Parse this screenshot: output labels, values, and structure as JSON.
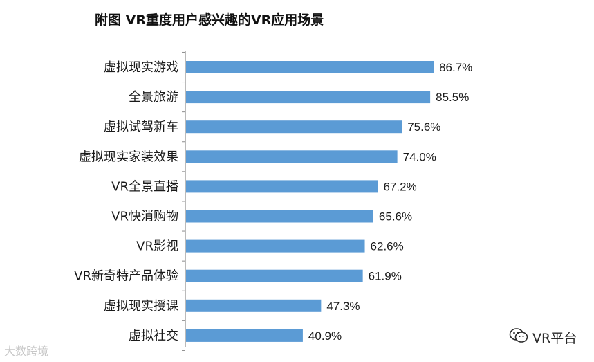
{
  "chart_data": {
    "type": "bar",
    "orientation": "horizontal",
    "title": "附图 VR重度用户感兴趣的VR应用场景",
    "categories": [
      "虚拟现实游戏",
      "全景旅游",
      "虚拟试驾新车",
      "虚拟现实家装效果",
      "VR全景直播",
      "VR快消购物",
      "VR影视",
      "VR新奇特产品体验",
      "虚拟现实授课",
      "虚拟社交"
    ],
    "values": [
      86.7,
      85.5,
      75.6,
      74.0,
      67.2,
      65.6,
      62.6,
      61.9,
      47.3,
      40.9
    ],
    "value_labels": [
      "86.7%",
      "85.5%",
      "75.6%",
      "74.0%",
      "67.2%",
      "65.6%",
      "62.6%",
      "61.9%",
      "47.3%",
      "40.9%"
    ],
    "unit": "%",
    "xlim": [
      0,
      100
    ],
    "grid": false,
    "legend": "none",
    "bar_color": "#5b9bd5",
    "axis_color": "#8c8c8c"
  },
  "watermarks": {
    "left_text": "大数跨境",
    "right_text": "VR平台",
    "right_icon": "wechat-icon"
  }
}
